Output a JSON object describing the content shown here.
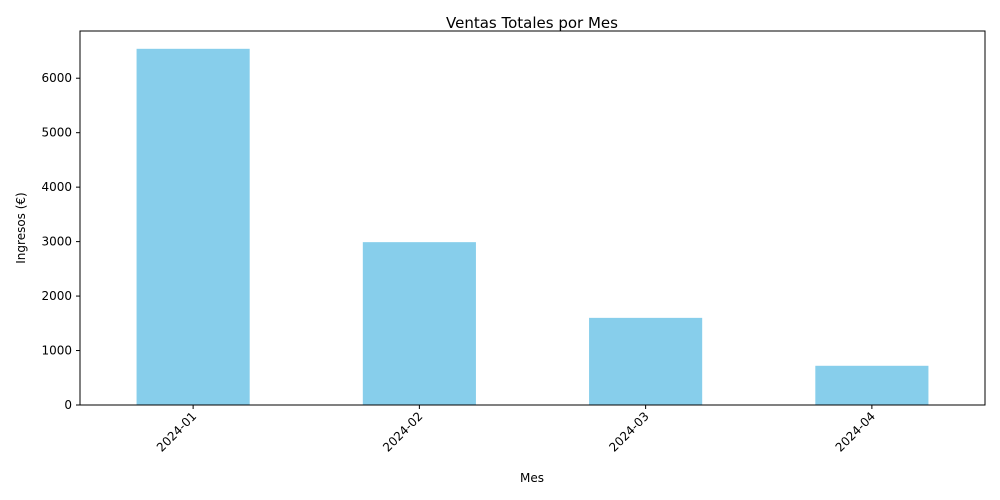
{
  "chart_data": {
    "type": "bar",
    "title": "Ventas Totales por Mes",
    "xlabel": "Mes",
    "ylabel": "Ingresos (€)",
    "categories": [
      "2024-01",
      "2024-02",
      "2024-03",
      "2024-04"
    ],
    "values": [
      6540,
      2990,
      1600,
      720
    ],
    "ylim": [
      0,
      6867
    ],
    "yticks": [
      0,
      1000,
      2000,
      3000,
      4000,
      5000,
      6000
    ],
    "xtick_rotation": 45,
    "grid": false,
    "bar_color": "#87ceeb"
  }
}
